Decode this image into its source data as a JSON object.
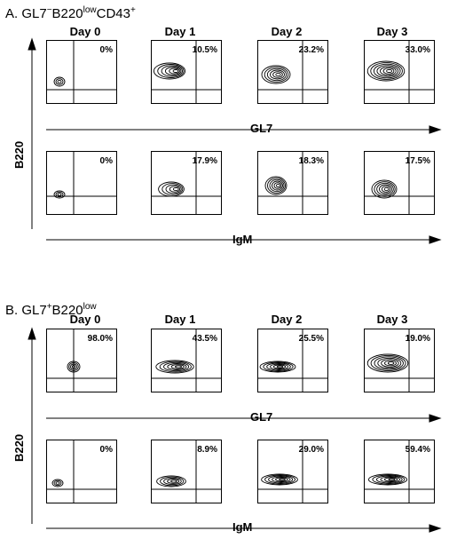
{
  "figure": {
    "section_a": {
      "title_prefix": "A. GL7",
      "title_sup1": "−",
      "title_mid": "B220",
      "title_sup2": "low",
      "title_mid2": "CD43",
      "title_sup3": "+",
      "days": [
        "Day 0",
        "Day 1",
        "Day 2",
        "Day 3"
      ],
      "row1_percents": [
        "0%",
        "10.5%",
        "23.2%",
        "33.0%"
      ],
      "row2_percents": [
        "0%",
        "17.9%",
        "18.3%",
        "17.5%"
      ],
      "y_axis_label": "B220",
      "row1_x_label": "GL7",
      "row2_x_label": "IgM"
    },
    "section_b": {
      "title_prefix": "B. GL7",
      "title_sup1": "+",
      "title_mid": "B220",
      "title_sup2": "low",
      "days": [
        "Day 0",
        "Day 1",
        "Day 2",
        "Day 3"
      ],
      "row1_percents": [
        "98.0%",
        "43.5%",
        "25.5%",
        "19.0%"
      ],
      "row2_percents": [
        "0%",
        "8.9%",
        "29.0%",
        "59.4%"
      ],
      "y_axis_label": "B220",
      "row1_x_label": "GL7",
      "row2_x_label": "IgM"
    }
  }
}
